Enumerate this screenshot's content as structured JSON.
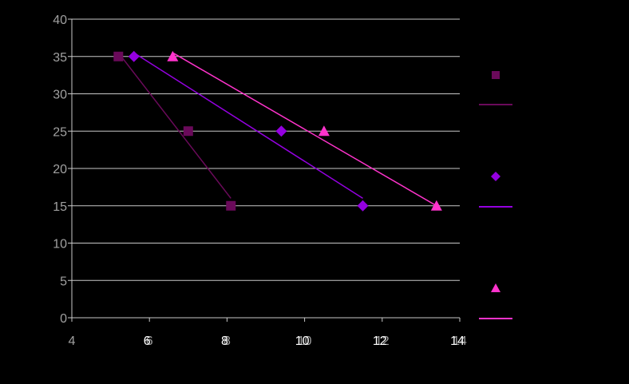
{
  "chart_data": {
    "type": "scatter",
    "xlim": [
      4,
      14
    ],
    "ylim": [
      0,
      40
    ],
    "x_ticks": [
      4,
      6,
      8,
      10,
      12,
      14
    ],
    "y_ticks": [
      0,
      5,
      10,
      15,
      20,
      25,
      30,
      35,
      40
    ],
    "x_overlay_ticks": [
      6,
      8,
      10,
      12,
      14
    ],
    "grid": "horizontal",
    "legend_position": "right",
    "colors": {
      "background": "#000000",
      "grid": "#c8c8c8",
      "axis": "#c8c8c8",
      "tick_text": "#a0a0a0",
      "overlay_tick_text": "#ffffff"
    },
    "series": [
      {
        "marker": "square",
        "color": "#6a0a5a",
        "points": [
          [
            5.2,
            35
          ],
          [
            7.0,
            25
          ],
          [
            8.1,
            15
          ]
        ],
        "trendline": [
          [
            5.2,
            35.5
          ],
          [
            8.1,
            16.0
          ]
        ]
      },
      {
        "marker": "diamond",
        "color": "#9400e0",
        "points": [
          [
            5.6,
            35
          ],
          [
            9.4,
            25
          ],
          [
            11.5,
            15
          ]
        ],
        "trendline": [
          [
            5.6,
            35.5
          ],
          [
            11.5,
            16.0
          ]
        ]
      },
      {
        "marker": "triangle",
        "color": "#ff33cc",
        "points": [
          [
            6.6,
            35
          ],
          [
            10.5,
            25
          ],
          [
            13.4,
            15
          ]
        ],
        "trendline": [
          [
            6.6,
            35.5
          ],
          [
            13.4,
            15.0
          ]
        ]
      }
    ]
  }
}
